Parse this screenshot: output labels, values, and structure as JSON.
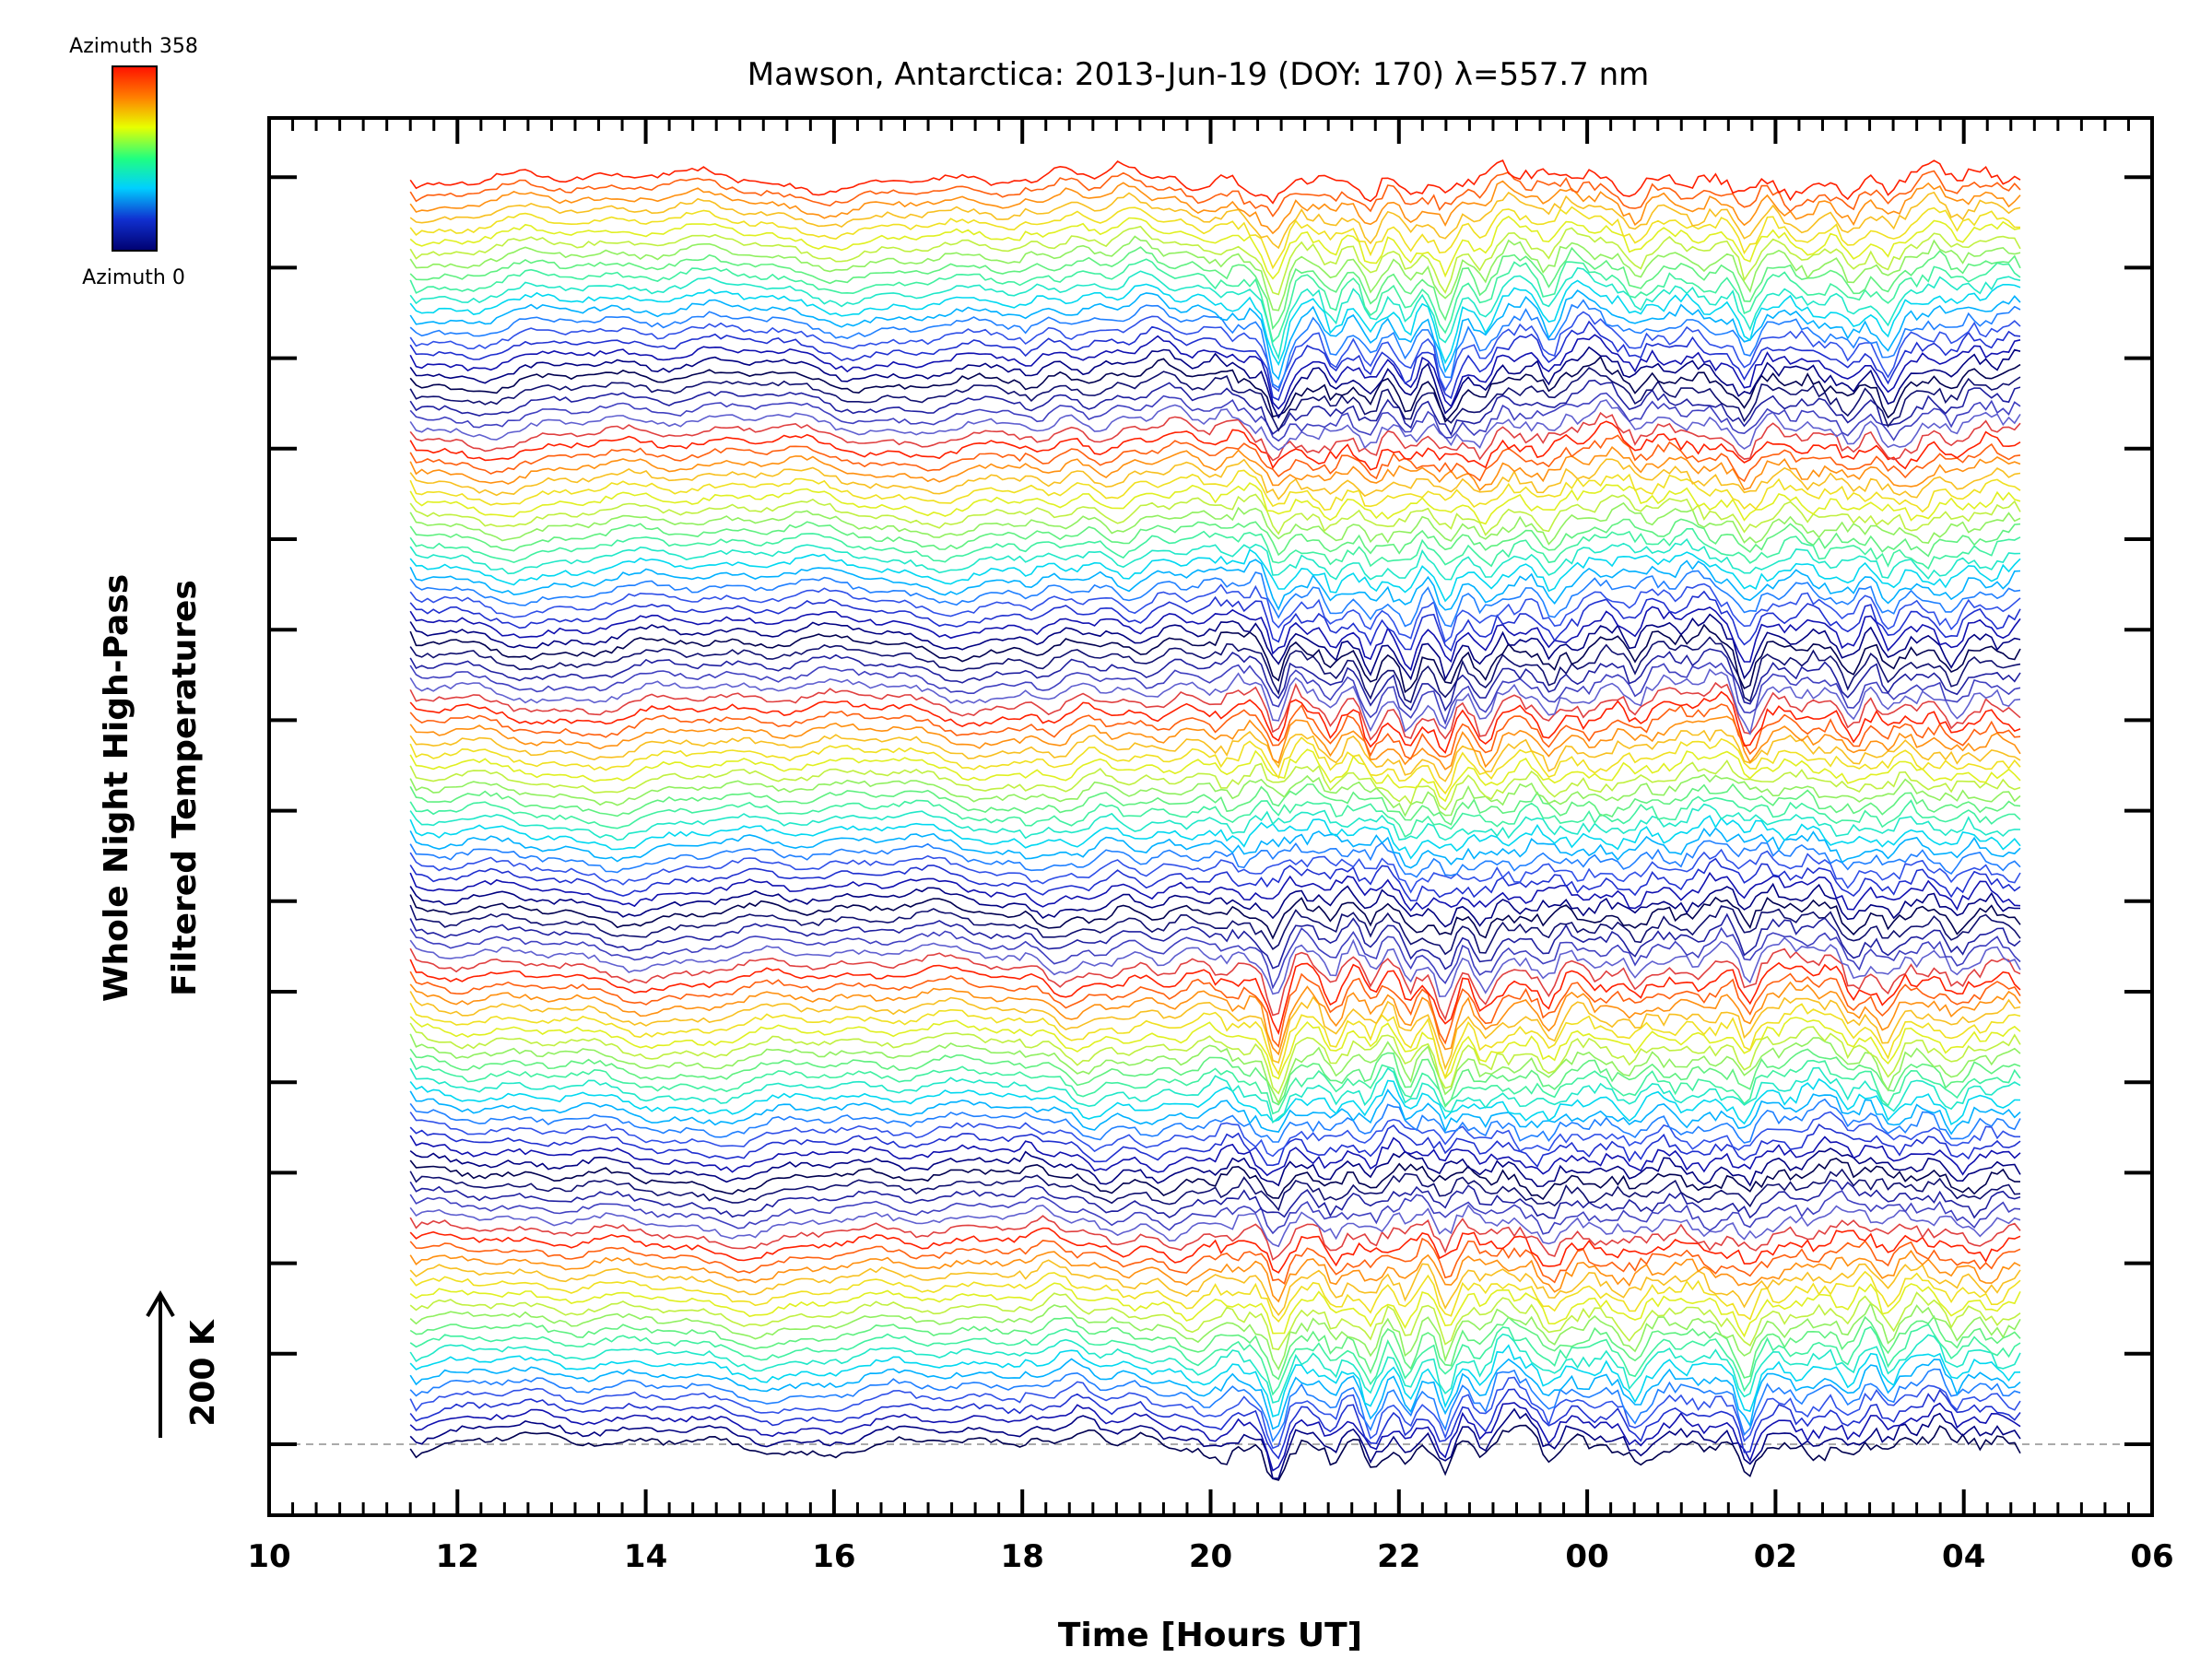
{
  "chart_data": {
    "type": "line",
    "title": "Mawson, Antarctica: 2013-Jun-19 (DOY: 170) λ=557.7 nm",
    "xlabel": "Time [Hours UT]",
    "ylabel_line1": "Whole Night High-Pass",
    "ylabel_line2": "Filtered Temperatures",
    "scale_label": "200 K",
    "colorbar": {
      "top_label": "Azimuth 358",
      "bottom_label": "Azimuth 0",
      "colors": [
        "#ff0000",
        "#ff8000",
        "#ffff00",
        "#00ff80",
        "#00c0ff",
        "#0000c0",
        "#000060"
      ]
    },
    "x_ticks": [
      "10",
      "12",
      "14",
      "16",
      "18",
      "20",
      "22",
      "00",
      "02",
      "04",
      "06"
    ],
    "xlim": [
      10,
      30
    ],
    "x_start": 11.5,
    "x_end": 28.6,
    "stacked_lines": 115,
    "lines_per_cycle": 24,
    "stack_spacing_K": 10,
    "grid": false,
    "legend": "colorbar-top-left"
  }
}
